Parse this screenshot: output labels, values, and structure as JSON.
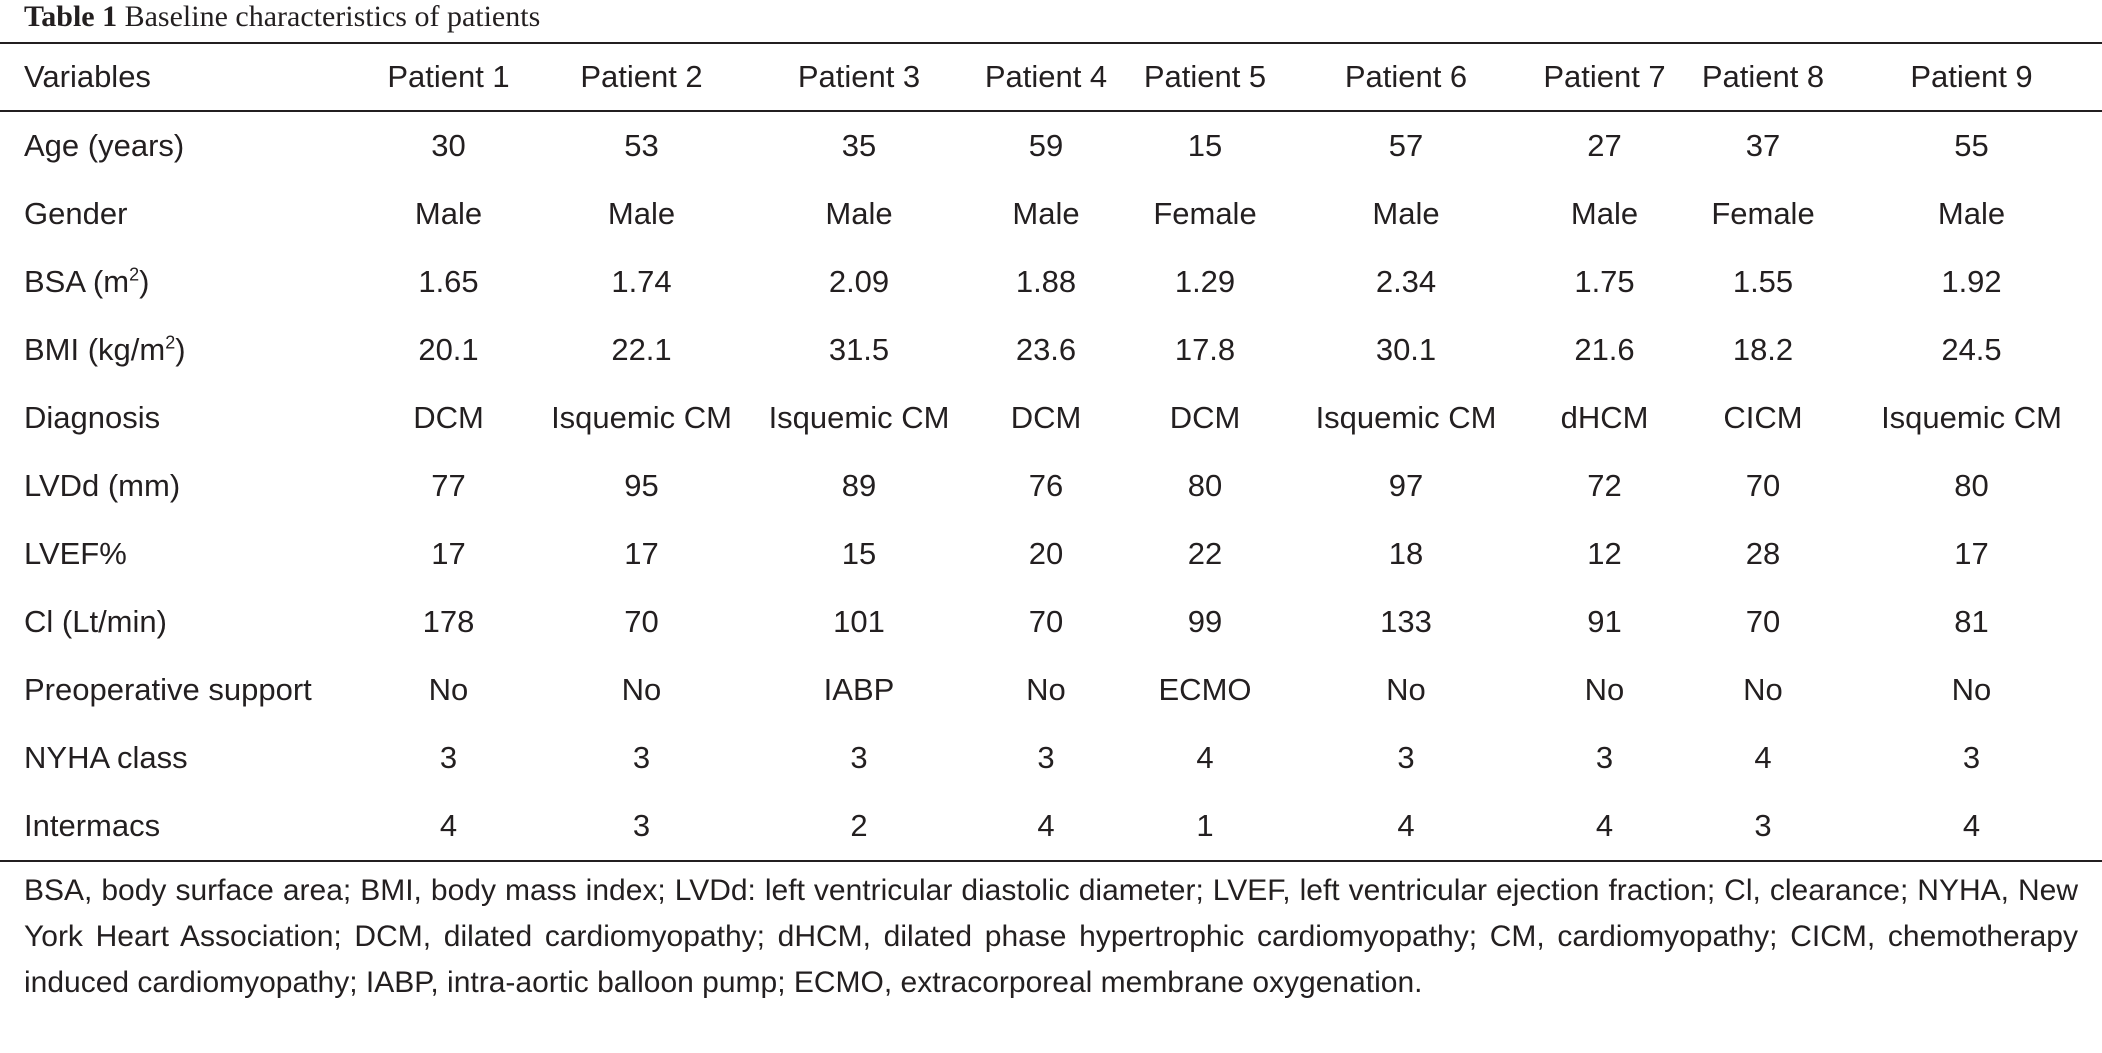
{
  "table": {
    "caption_label": "Table 1",
    "caption_text": "Baseline characteristics of patients",
    "header": [
      "Variables",
      "Patient 1",
      "Patient 2",
      "Patient 3",
      "Patient 4",
      "Patient 5",
      "Patient 6",
      "Patient 7",
      "Patient 8",
      "Patient 9"
    ],
    "rows": [
      {
        "label": "Age (years)",
        "values": [
          "30",
          "53",
          "35",
          "59",
          "15",
          "57",
          "27",
          "37",
          "55"
        ]
      },
      {
        "label": "Gender",
        "values": [
          "Male",
          "Male",
          "Male",
          "Male",
          "Female",
          "Male",
          "Male",
          "Female",
          "Male"
        ]
      },
      {
        "label_pre": "BSA (m",
        "label_sup": "2",
        "label_post": ")",
        "values": [
          "1.65",
          "1.74",
          "2.09",
          "1.88",
          "1.29",
          "2.34",
          "1.75",
          "1.55",
          "1.92"
        ]
      },
      {
        "label_pre": "BMI (kg/m",
        "label_sup": "2",
        "label_post": ")",
        "values": [
          "20.1",
          "22.1",
          "31.5",
          "23.6",
          "17.8",
          "30.1",
          "21.6",
          "18.2",
          "24.5"
        ]
      },
      {
        "label": "Diagnosis",
        "values": [
          "DCM",
          "Isquemic CM",
          "Isquemic CM",
          "DCM",
          "DCM",
          "Isquemic CM",
          "dHCM",
          "CICM",
          "Isquemic CM"
        ]
      },
      {
        "label": "LVDd (mm)",
        "values": [
          "77",
          "95",
          "89",
          "76",
          "80",
          "97",
          "72",
          "70",
          "80"
        ]
      },
      {
        "label": "LVEF%",
        "values": [
          "17",
          "17",
          "15",
          "20",
          "22",
          "18",
          "12",
          "28",
          "17"
        ]
      },
      {
        "label": "Cl (Lt/min)",
        "values": [
          "178",
          "70",
          "101",
          "70",
          "99",
          "133",
          "91",
          "70",
          "81"
        ]
      },
      {
        "label": "Preoperative support",
        "values": [
          "No",
          "No",
          "IABP",
          "No",
          "ECMO",
          "No",
          "No",
          "No",
          "No"
        ]
      },
      {
        "label": "NYHA class",
        "values": [
          "3",
          "3",
          "3",
          "3",
          "4",
          "3",
          "3",
          "4",
          "3"
        ]
      },
      {
        "label": "Intermacs",
        "values": [
          "4",
          "3",
          "2",
          "4",
          "1",
          "4",
          "4",
          "3",
          "4"
        ]
      }
    ],
    "footnote": "BSA, body surface area; BMI, body mass index; LVDd: left ventricular diastolic diameter; LVEF, left ventricular ejection fraction; Cl, clearance; NYHA, New York Heart Association; DCM, dilated cardiomyopathy; dHCM, dilated phase hypertrophic cardiomyopathy; CM, cardiomyopathy; CICM, chemotherapy induced cardiomyopathy; IABP, intra-aortic balloon pump; ECMO, extracorporeal membrane oxygenation."
  }
}
